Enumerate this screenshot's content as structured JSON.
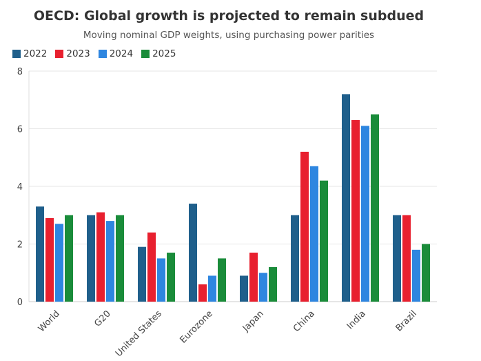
{
  "chart_data": {
    "type": "bar",
    "title": "OECD: Global growth is projected to remain subdued",
    "subtitle": "Moving nominal GDP weights, using purchasing power parities",
    "xlabel": "",
    "ylabel": "",
    "ylim": [
      0,
      8
    ],
    "yticks": [
      0,
      2,
      4,
      6,
      8
    ],
    "grid": true,
    "legend_position": "top-left",
    "categories": [
      "World",
      "G20",
      "United States",
      "Eurozone",
      "Japan",
      "China",
      "India",
      "Brazil"
    ],
    "series": [
      {
        "name": "2022",
        "color": "#1f5f8b",
        "values": [
          3.3,
          3.0,
          1.9,
          3.4,
          0.9,
          3.0,
          7.2,
          3.0
        ]
      },
      {
        "name": "2023",
        "color": "#e8202f",
        "values": [
          2.9,
          3.1,
          2.4,
          0.6,
          1.7,
          5.2,
          6.3,
          3.0
        ]
      },
      {
        "name": "2024",
        "color": "#2e86e0",
        "values": [
          2.7,
          2.8,
          1.5,
          0.9,
          1.0,
          4.7,
          6.1,
          1.8
        ]
      },
      {
        "name": "2025",
        "color": "#1a8c3a",
        "values": [
          3.0,
          3.0,
          1.7,
          1.5,
          1.2,
          4.2,
          6.5,
          2.0
        ]
      }
    ]
  }
}
